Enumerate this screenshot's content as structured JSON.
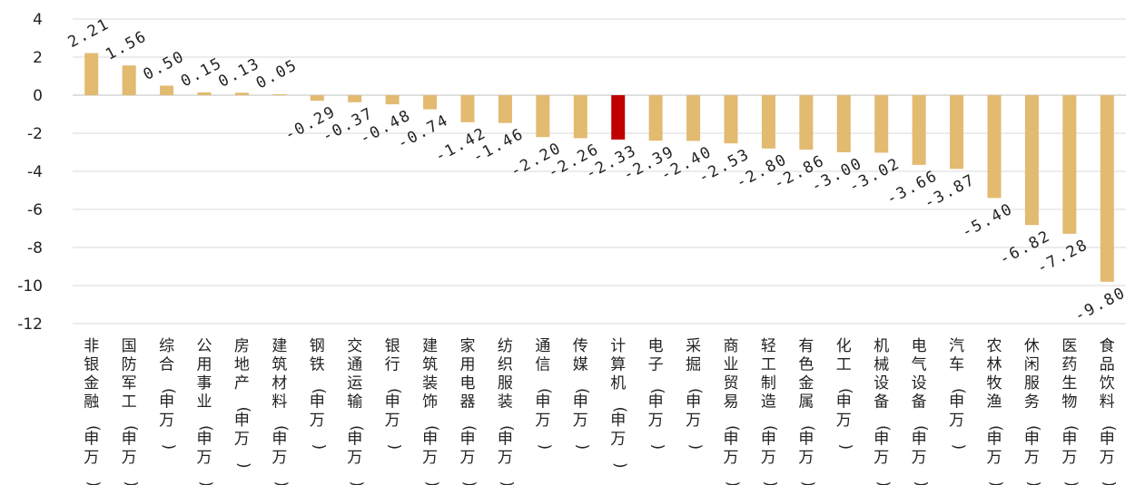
{
  "chart_data": {
    "type": "bar",
    "categories": [
      "非银金融(申万)",
      "国防军工(申万)",
      "综合(申万)",
      "公用事业(申万)",
      "房地产(申万)",
      "建筑材料(申万)",
      "钢铁(申万)",
      "交通运输(申万)",
      "银行(申万)",
      "建筑装饰(申万)",
      "家用电器(申万)",
      "纺织服装(申万)",
      "通信(申万)",
      "传媒(申万)",
      "计算机(申万)",
      "电子(申万)",
      "采掘(申万)",
      "商业贸易(申万)",
      "轻工制造(申万)",
      "有色金属(申万)",
      "化工(申万)",
      "机械设备(申万)",
      "电气设备(申万)",
      "汽车(申万)",
      "农林牧渔(申万)",
      "休闲服务(申万)",
      "医药生物(申万)",
      "食品饮料(申万)"
    ],
    "values": [
      2.21,
      1.56,
      0.5,
      0.15,
      0.13,
      0.05,
      -0.29,
      -0.37,
      -0.48,
      -0.74,
      -1.42,
      -1.46,
      -2.2,
      -2.26,
      -2.33,
      -2.39,
      -2.4,
      -2.53,
      -2.8,
      -2.86,
      -3.0,
      -3.02,
      -3.66,
      -3.87,
      -5.4,
      -6.82,
      -7.28,
      -9.8
    ],
    "value_labels": [
      "2.21",
      "1.56",
      "0.50",
      "0.15",
      "0.13",
      "0.05",
      "-0.29",
      "-0.37",
      "-0.48",
      "-0.74",
      "-1.42",
      "-1.46",
      "-2.20",
      "-2.26",
      "-2.33",
      "-2.39",
      "-2.40",
      "-2.53",
      "-2.80",
      "-2.86",
      "-3.00",
      "-3.02",
      "-3.66",
      "-3.87",
      "-5.40",
      "-6.82",
      "-7.28",
      "-9.80"
    ],
    "highlight_index": 14,
    "ylim": [
      -12,
      4
    ],
    "yticks": [
      4,
      2,
      0,
      -2,
      -4,
      -6,
      -8,
      -10,
      -12
    ],
    "grid": true,
    "title": "",
    "xlabel": "",
    "ylabel": "",
    "colors": {
      "bar": "#E2BA70",
      "highlight": "#C00000"
    }
  }
}
